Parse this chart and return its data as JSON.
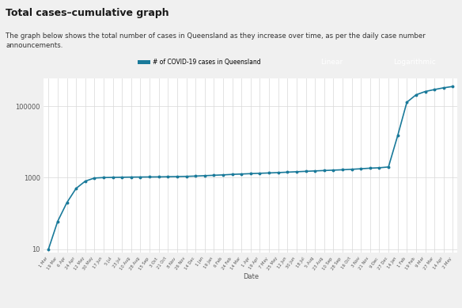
{
  "title": "Total cases–cumulative graph",
  "subtitle": "The graph below shows the total number of cases in Queensland as they increase over time, as per the daily case number\nannouncements.",
  "legend_label": "# of COVID-19 cases in Queensland",
  "xlabel": "Date",
  "line_color": "#1a7a9a",
  "bg_color": "#f0f0f0",
  "plot_bg_color": "#ffffff",
  "button_linear_color": "#777777",
  "button_log_color": "#2080a0",
  "xtick_labels": [
    "1 Mar",
    "19 Mar",
    "6 Apr",
    "24 Apr",
    "12 May",
    "30 May",
    "17 Jun",
    "5 Jul",
    "23 Jul",
    "10 Aug",
    "28 Aug",
    "15 Sep",
    "3 Oct",
    "21 Oct",
    "8 Nov",
    "26 Nov",
    "14 Dec",
    "1 Jan",
    "19 Jan",
    "6 Feb",
    "24 Feb",
    "14 Mar",
    "1 Apr",
    "19 Apr",
    "7 May",
    "25 May",
    "12 Jun",
    "30 Jun",
    "18 Jul",
    "5 Aug",
    "23 Aug",
    "10 Sep",
    "28 Sep",
    "16 Oct",
    "3 Nov",
    "21 Nov",
    "9 Dec",
    "27 Dec",
    "14 Jan",
    "1 Feb",
    "19 Feb",
    "9 Mar",
    "27 Mar",
    "14 Apr",
    "2 May"
  ],
  "data_y": [
    10,
    60,
    200,
    500,
    800,
    980,
    1010,
    1020,
    1030,
    1040,
    1045,
    1050,
    1055,
    1065,
    1075,
    1090,
    1110,
    1140,
    1170,
    1200,
    1240,
    1270,
    1300,
    1330,
    1360,
    1390,
    1430,
    1470,
    1510,
    1550,
    1590,
    1630,
    1670,
    1720,
    1780,
    1850,
    1900,
    2000,
    15000,
    130000,
    210000,
    260000,
    295000,
    330000,
    360000
  ]
}
